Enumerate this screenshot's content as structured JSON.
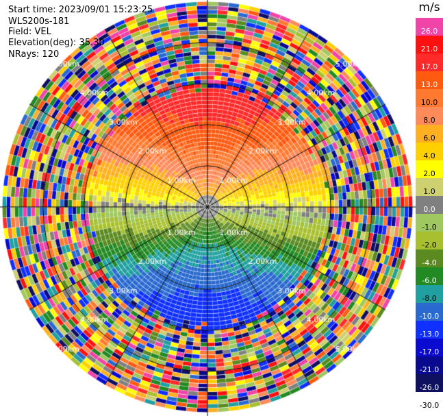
{
  "header": {
    "start_time": "Start time: 2023/09/01 15:23:25",
    "site": "WLS200s-181",
    "field": "Field: VEL",
    "elevation": "Elevation(deg): 35.30",
    "nrays": "NRays: 120"
  },
  "range_rings_km": [
    1,
    2,
    3,
    4
  ],
  "range_ring_labels": [
    "1.00km",
    "2.00km",
    "3.00km",
    "4.00km",
    "5.00km"
  ],
  "n_rays": 120,
  "colorbar": {
    "unit": "m/s",
    "levels": [
      {
        "value": "26.0",
        "color": "#f044a8"
      },
      {
        "value": "21.0",
        "color": "#ff1010"
      },
      {
        "value": "17.0",
        "color": "#ff2a2a"
      },
      {
        "value": "13.0",
        "color": "#ff5a10"
      },
      {
        "value": "10.0",
        "color": "#ff7a30"
      },
      {
        "value": "8.0",
        "color": "#ff8a5a"
      },
      {
        "value": "6.0",
        "color": "#ffb020"
      },
      {
        "value": "4.0",
        "color": "#ffd000"
      },
      {
        "value": "2.0",
        "color": "#ffff00"
      },
      {
        "value": "1.0",
        "color": "#cfd070"
      },
      {
        "value": "0.0",
        "color": "#808080"
      },
      {
        "value": "-1.0",
        "color": "#a0c860"
      },
      {
        "value": "-2.0",
        "color": "#a8c030"
      },
      {
        "value": "-4.0",
        "color": "#5a8a20"
      },
      {
        "value": "-6.0",
        "color": "#228a22"
      },
      {
        "value": "-8.0",
        "color": "#20a0a0"
      },
      {
        "value": "-10.0",
        "color": "#2a6ad0"
      },
      {
        "value": "-13.0",
        "color": "#1030ff"
      },
      {
        "value": "-17.0",
        "color": "#0a0ad0"
      },
      {
        "value": "-21.0",
        "color": "#0a0a90"
      },
      {
        "value": "-26.0",
        "color": "#101060"
      },
      {
        "value": "-30.0",
        "color": "#ffffff"
      }
    ]
  }
}
